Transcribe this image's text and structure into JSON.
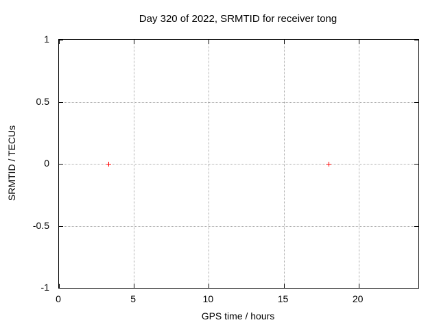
{
  "chart_data": {
    "type": "scatter",
    "title": "Day 320 of 2022, SRMTID for receiver tong",
    "xlabel": "GPS time / hours",
    "ylabel": "SRMTID / TECUs",
    "xlim": [
      0,
      24
    ],
    "ylim": [
      -1,
      1
    ],
    "xticks": [
      0,
      5,
      10,
      15,
      20
    ],
    "xtick_labels": [
      "0",
      "5",
      "10",
      "15",
      "20"
    ],
    "yticks": [
      -1,
      -0.5,
      0,
      0.5,
      1
    ],
    "ytick_labels": [
      "-1",
      "-0.5",
      "0",
      "0.5",
      "1"
    ],
    "grid": true,
    "grid_style": "dotted",
    "legend": "none",
    "series": [
      {
        "name": "SRMTID",
        "marker": "plus",
        "color": "#ff0000",
        "points": [
          [
            3.3,
            0.0
          ],
          [
            18.0,
            0.0
          ]
        ]
      }
    ],
    "colors": {
      "marker": "#ff0000",
      "grid": "#a8a8a8",
      "border": "#000000",
      "text": "#000000",
      "background": "#ffffff"
    }
  }
}
